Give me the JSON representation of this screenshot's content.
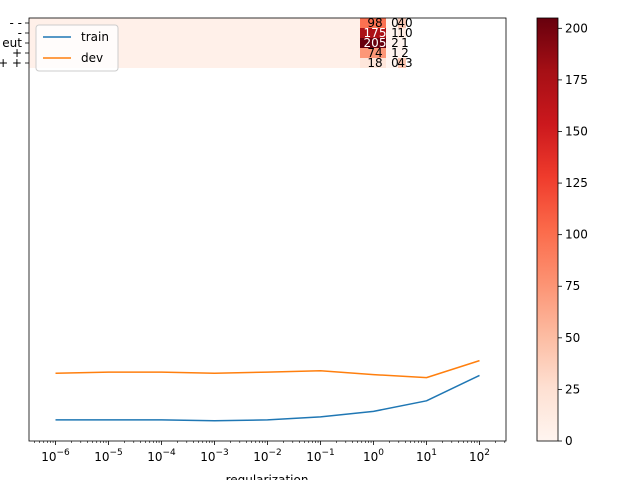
{
  "chart_data": [
    {
      "type": "line",
      "xlabel": "regularization",
      "xscale": "log",
      "x": [
        1e-06,
        1e-05,
        0.0001,
        0.001,
        0.01,
        0.1,
        1,
        10,
        100
      ],
      "xtick_labels": [
        "10^-6",
        "10^-5",
        "10^-4",
        "10^-3",
        "10^-2",
        "10^-1",
        "10^0",
        "10^1",
        "10^2"
      ],
      "xtick_exponents": [
        "-6",
        "-5",
        "-4",
        "-3",
        "-2",
        "-1",
        "0",
        "1",
        "2"
      ],
      "ylim": [
        0,
        1
      ],
      "legend_position": "top-left",
      "series": [
        {
          "name": "train",
          "color": "#1f77b4",
          "values": [
            0.05,
            0.05,
            0.05,
            0.048,
            0.05,
            0.057,
            0.07,
            0.095,
            0.155
          ]
        },
        {
          "name": "dev",
          "color": "#ff7f0e",
          "values": [
            0.16,
            0.163,
            0.163,
            0.16,
            0.163,
            0.166,
            0.157,
            0.15,
            0.19
          ]
        }
      ]
    },
    {
      "type": "heatmap",
      "row_labels": [
        "- -",
        "-",
        "eut",
        "+",
        "+ +"
      ],
      "values": [
        [
          98,
          0,
          40
        ],
        [
          175,
          1,
          10
        ],
        [
          205,
          2,
          1
        ],
        [
          74,
          1,
          2
        ],
        [
          18,
          0,
          43
        ]
      ],
      "cell_text": [
        [
          "98",
          "0",
          "40"
        ],
        [
          "175",
          "1",
          "10"
        ],
        [
          "205",
          "2",
          "1"
        ],
        [
          "74",
          "1",
          "2"
        ],
        [
          "18",
          "0",
          "43"
        ]
      ],
      "color_min": 0,
      "color_max": 205,
      "colormap": "Reds"
    }
  ],
  "colorbar": {
    "tick_labels": [
      "0",
      "25",
      "50",
      "75",
      "100",
      "125",
      "150",
      "175",
      "200"
    ],
    "min": 0,
    "max": 205
  }
}
